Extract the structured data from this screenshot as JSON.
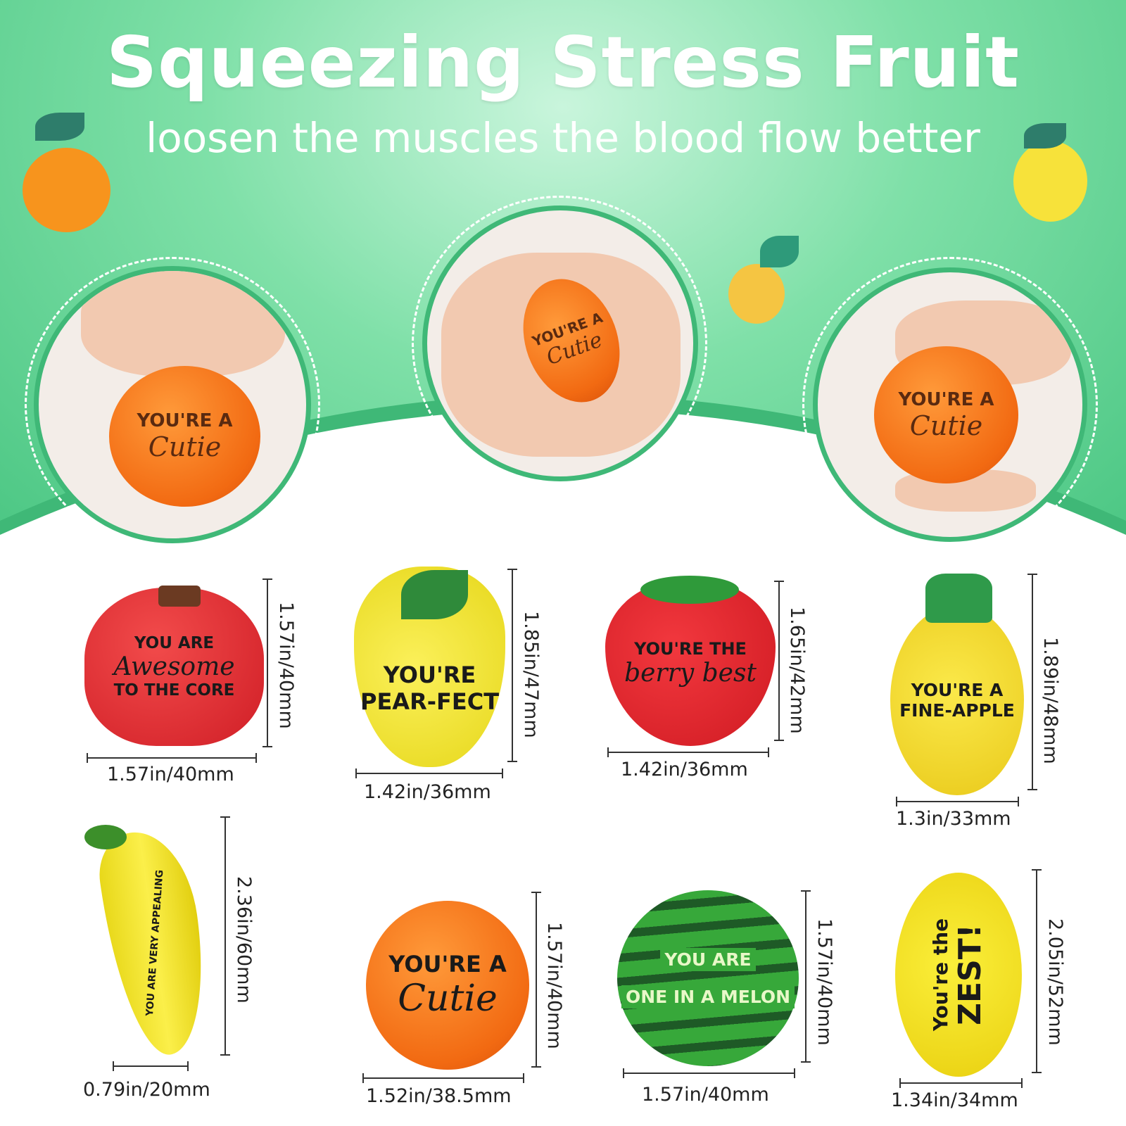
{
  "header": {
    "title": "Squeezing Stress Fruit",
    "subtitle": "loosen the muscles the blood flow better"
  },
  "colors": {
    "accent_green": "#3fb877",
    "background_green": "#7fe0a8",
    "orange": "#f26a12"
  },
  "photos": [
    {
      "line1": "YOU'RE A",
      "line2": "Cutie"
    },
    {
      "line1": "YOU'RE A",
      "line2": "Cutie"
    },
    {
      "line1": "YOU'RE A",
      "line2": "Cutie"
    }
  ],
  "fruits": [
    {
      "name": "apple",
      "line1": "YOU ARE",
      "line2": "Awesome",
      "line3": "TO THE CORE",
      "height": "1.57in/40mm",
      "width": "1.57in/40mm"
    },
    {
      "name": "pear",
      "line1": "YOU'RE",
      "line2": "PEAR-FECT",
      "height": "1.85in/47mm",
      "width": "1.42in/36mm"
    },
    {
      "name": "strawberry",
      "line1": "YOU'RE THE",
      "line2": "berry best",
      "height": "1.65in/42mm",
      "width": "1.42in/36mm"
    },
    {
      "name": "pineapple",
      "line1": "YOU'RE A",
      "line2": "FINE-APPLE",
      "height": "1.89in/48mm",
      "width": "1.3in/33mm"
    },
    {
      "name": "banana",
      "line1": "YOU ARE VERY APPEALING",
      "height": "2.36in/60mm",
      "width": "0.79in/20mm"
    },
    {
      "name": "orange",
      "line1": "YOU'RE A",
      "line2": "Cutie",
      "height": "1.57in/40mm",
      "width": "1.52in/38.5mm"
    },
    {
      "name": "watermelon",
      "line1": "YOU ARE",
      "line2": "ONE IN A MELON",
      "height": "1.57in/40mm",
      "width": "1.57in/40mm"
    },
    {
      "name": "lemon",
      "line1": "You're the",
      "line2": "ZEST!",
      "height": "2.05in/52mm",
      "width": "1.34in/34mm"
    }
  ]
}
